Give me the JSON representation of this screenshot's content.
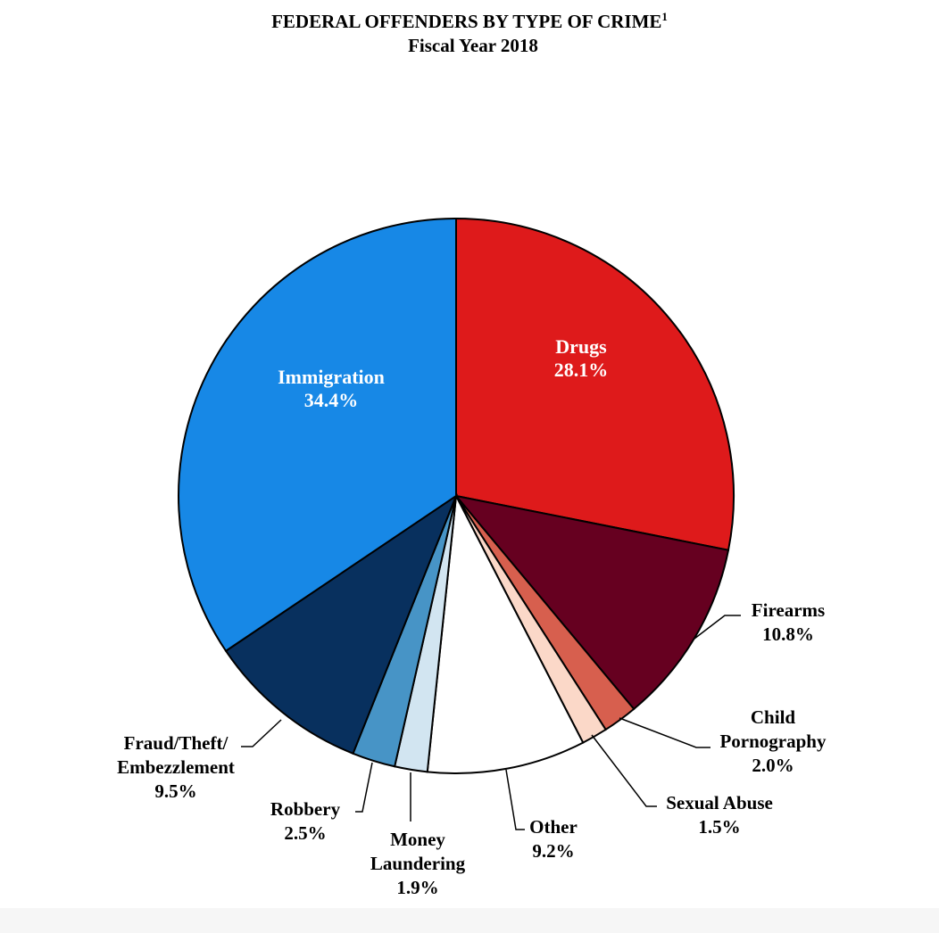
{
  "chart_data": {
    "type": "pie",
    "title": "FEDERAL OFFENDERS BY TYPE OF CRIME",
    "title_footnote": "1",
    "subtitle": "Fiscal Year 2018",
    "slices": [
      {
        "key": "drugs",
        "name": "Drugs",
        "value": 28.1,
        "label": "28.1%",
        "color": "#de1a1b"
      },
      {
        "key": "firearms",
        "name": "Firearms",
        "value": 10.8,
        "label": "10.8%",
        "color": "#660020"
      },
      {
        "key": "child-pornography",
        "name": "Child Pornography",
        "name_lines": [
          "Child",
          "Pornography"
        ],
        "value": 2.0,
        "label": "2.0%",
        "color": "#d75f4e"
      },
      {
        "key": "sexual-abuse",
        "name": "Sexual Abuse",
        "value": 1.5,
        "label": "1.5%",
        "color": "#fbd8c8"
      },
      {
        "key": "other",
        "name": "Other",
        "value": 9.2,
        "label": "9.2%",
        "color": "#ffffff"
      },
      {
        "key": "money-laundering",
        "name": "Money Laundering",
        "name_lines": [
          "Money",
          "Laundering"
        ],
        "value": 1.9,
        "label": "1.9%",
        "color": "#d2e5f1"
      },
      {
        "key": "robbery",
        "name": "Robbery",
        "value": 2.5,
        "label": "2.5%",
        "color": "#4794c6"
      },
      {
        "key": "fraud",
        "name": "Fraud/Theft/ Embezzlement",
        "name_lines": [
          "Fraud/Theft/",
          "Embezzlement"
        ],
        "value": 9.5,
        "label": "9.5%",
        "color": "#08305e"
      },
      {
        "key": "immigration",
        "name": "Immigration",
        "value": 34.4,
        "label": "34.4%",
        "color": "#1788e6"
      }
    ],
    "start_angle": "12 o'clock",
    "direction": "clockwise",
    "legend": "none",
    "inside_labels": [
      "drugs",
      "immigration"
    ],
    "label_text_color_inside": "#ffffff"
  }
}
